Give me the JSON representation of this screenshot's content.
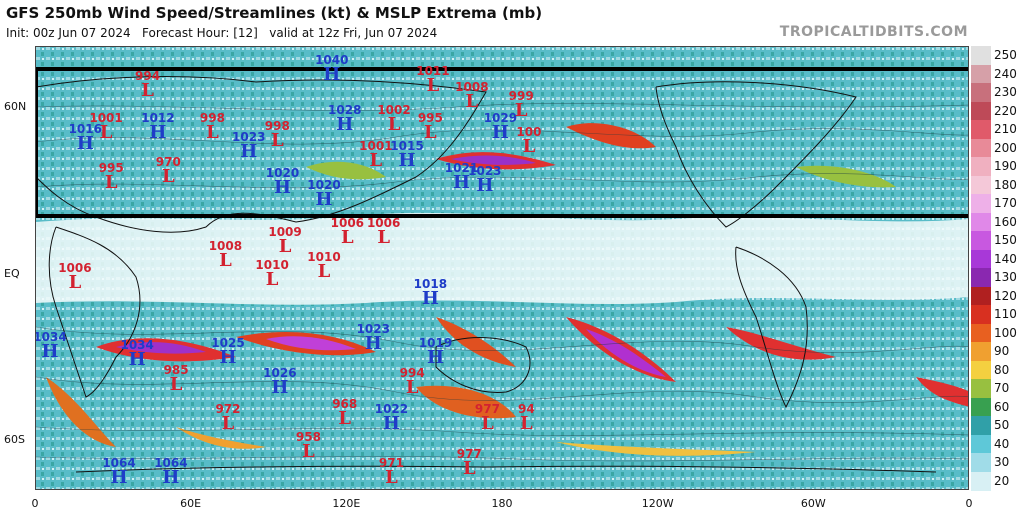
{
  "header": {
    "title": "GFS 250mb Wind Speed/Streamlines (kt) & MSLP Extrema (mb)",
    "subtitle": "Init: 00z Jun 07 2024   Forecast Hour: [12]   valid at 12z Fri, Jun 07 2024",
    "watermark": "TROPICALTIDBITS.COM"
  },
  "axes": {
    "lat_labels": [
      {
        "text": "60N",
        "lat": 60
      },
      {
        "text": "EQ",
        "lat": 0
      },
      {
        "text": "60S",
        "lat": -60
      }
    ],
    "lon_labels": [
      {
        "text": "0",
        "lon": 0
      },
      {
        "text": "60E",
        "lon": 60
      },
      {
        "text": "120E",
        "lon": 120
      },
      {
        "text": "180",
        "lon": 180
      },
      {
        "text": "120W",
        "lon": 240
      },
      {
        "text": "60W",
        "lon": 300
      },
      {
        "text": "0",
        "lon": 360
      }
    ]
  },
  "colorbar": {
    "labels": [
      "250",
      "240",
      "230",
      "220",
      "210",
      "200",
      "190",
      "180",
      "170",
      "160",
      "150",
      "140",
      "130",
      "120",
      "110",
      "100",
      "90",
      "80",
      "70",
      "60",
      "50",
      "40",
      "30",
      "20"
    ],
    "colors": [
      "#e0e0e0",
      "#d6a0a8",
      "#c8707c",
      "#be4a58",
      "#e05a6a",
      "#e88a98",
      "#f0b0c0",
      "#f4c8d8",
      "#eeb0e8",
      "#e088e8",
      "#c858e0",
      "#a838d8",
      "#8a28b0",
      "#b02020",
      "#d83020",
      "#e86020",
      "#f0a030",
      "#f4d040",
      "#98c040",
      "#38a050",
      "#30a0a8",
      "#5ec8d8",
      "#a0dce8",
      "#d8f0f4"
    ]
  },
  "extrema": [
    {
      "type": "L",
      "value": "1001",
      "lon": 27,
      "lat": 55
    },
    {
      "type": "H",
      "value": "1012",
      "lon": 47,
      "lat": 55
    },
    {
      "type": "L",
      "value": "998",
      "lon": 68,
      "lat": 55
    },
    {
      "type": "H",
      "value": "1023",
      "lon": 82,
      "lat": 48
    },
    {
      "type": "L",
      "value": "998",
      "lon": 93,
      "lat": 52
    },
    {
      "type": "H",
      "value": "1040",
      "lon": 114,
      "lat": 76
    },
    {
      "type": "H",
      "value": "1028",
      "lon": 119,
      "lat": 58
    },
    {
      "type": "H",
      "value": "1020",
      "lon": 95,
      "lat": 35
    },
    {
      "type": "H",
      "value": "1020",
      "lon": 111,
      "lat": 31
    },
    {
      "type": "L",
      "value": "1011",
      "lon": 153,
      "lat": 72
    },
    {
      "type": "L",
      "value": "1002",
      "lon": 138,
      "lat": 58
    },
    {
      "type": "L",
      "value": "995",
      "lon": 152,
      "lat": 55
    },
    {
      "type": "L",
      "value": "1008",
      "lon": 168,
      "lat": 66
    },
    {
      "type": "H",
      "value": "1029",
      "lon": 179,
      "lat": 55
    },
    {
      "type": "L",
      "value": "999",
      "lon": 187,
      "lat": 63
    },
    {
      "type": "L",
      "value": "1001",
      "lon": 131,
      "lat": 45
    },
    {
      "type": "H",
      "value": "1015",
      "lon": 143,
      "lat": 45
    },
    {
      "type": "H",
      "value": "1021",
      "lon": 164,
      "lat": 37
    },
    {
      "type": "H",
      "value": "1023",
      "lon": 173,
      "lat": 36
    },
    {
      "type": "L",
      "value": "100",
      "lon": 190,
      "lat": 50
    },
    {
      "type": "L",
      "value": "994",
      "lon": 43,
      "lat": 70
    },
    {
      "type": "H",
      "value": "1016",
      "lon": 19,
      "lat": 51
    },
    {
      "type": "L",
      "value": "995",
      "lon": 29,
      "lat": 37
    },
    {
      "type": "L",
      "value": "970",
      "lon": 51,
      "lat": 39
    },
    {
      "type": "L",
      "value": "1008",
      "lon": 73,
      "lat": 9
    },
    {
      "type": "L",
      "value": "1009",
      "lon": 96,
      "lat": 14
    },
    {
      "type": "L",
      "value": "1006",
      "lon": 120,
      "lat": 17
    },
    {
      "type": "L",
      "value": "1006",
      "lon": 134,
      "lat": 17
    },
    {
      "type": "L",
      "value": "1010",
      "lon": 91,
      "lat": 2
    },
    {
      "type": "L",
      "value": "1010",
      "lon": 111,
      "lat": 5
    },
    {
      "type": "L",
      "value": "1006",
      "lon": 15,
      "lat": 1
    },
    {
      "type": "H",
      "value": "1018",
      "lon": 152,
      "lat": -5
    },
    {
      "type": "H",
      "value": "1034",
      "lon": 5,
      "lat": -24
    },
    {
      "type": "H",
      "value": "1034",
      "lon": 39,
      "lat": -27
    },
    {
      "type": "H",
      "value": "1025",
      "lon": 74,
      "lat": -26
    },
    {
      "type": "H",
      "value": "1023",
      "lon": 130,
      "lat": -21
    },
    {
      "type": "H",
      "value": "1019",
      "lon": 154,
      "lat": -26
    },
    {
      "type": "L",
      "value": "985",
      "lon": 54,
      "lat": -36
    },
    {
      "type": "H",
      "value": "1026",
      "lon": 94,
      "lat": -37
    },
    {
      "type": "L",
      "value": "994",
      "lon": 145,
      "lat": -37
    },
    {
      "type": "L",
      "value": "972",
      "lon": 74,
      "lat": -50
    },
    {
      "type": "L",
      "value": "968",
      "lon": 119,
      "lat": -48
    },
    {
      "type": "H",
      "value": "1022",
      "lon": 137,
      "lat": -50
    },
    {
      "type": "L",
      "value": "958",
      "lon": 105,
      "lat": -60
    },
    {
      "type": "L",
      "value": "977",
      "lon": 174,
      "lat": -50
    },
    {
      "type": "L",
      "value": "94",
      "lon": 189,
      "lat": -50
    },
    {
      "type": "L",
      "value": "977",
      "lon": 167,
      "lat": -66
    },
    {
      "type": "L",
      "value": "971",
      "lon": 137,
      "lat": -72
    },
    {
      "type": "H",
      "value": "1064",
      "lon": 32,
      "lat": -71
    },
    {
      "type": "H",
      "value": "1064",
      "lon": 52,
      "lat": -71
    }
  ]
}
